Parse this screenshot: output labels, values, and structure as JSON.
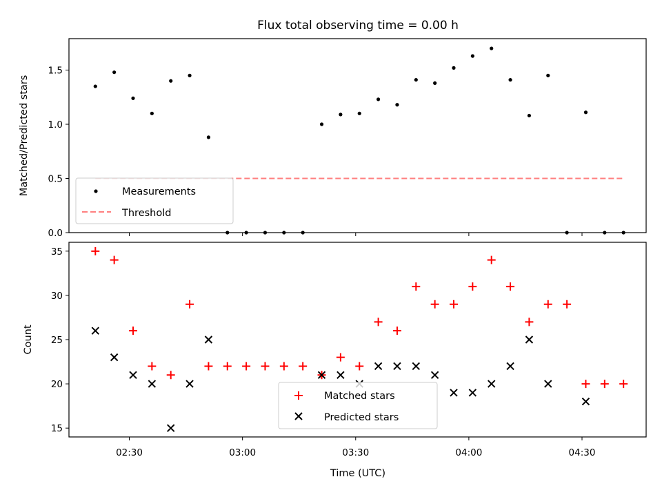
{
  "title": "Flux total observing time = 0.00 h",
  "colors": {
    "measurements": "#000000",
    "threshold": "#ff7f7f",
    "matched": "#ff0000",
    "predicted": "#000000"
  },
  "x_axis": {
    "label": "Time (UTC)",
    "range": [
      "02:14",
      "04:47"
    ],
    "ticks": [
      "02:30",
      "03:00",
      "03:30",
      "04:00",
      "04:30"
    ]
  },
  "chart_data": [
    {
      "type": "scatter",
      "panel": "top",
      "ylabel": "Matched/Predicted stars",
      "ylim": [
        0,
        1.79
      ],
      "yticks": [
        "0.0",
        "0.5",
        "1.0",
        "1.5"
      ],
      "legend_position": "lower-left",
      "series": [
        {
          "name": "Measurements",
          "marker": "dot",
          "x": [
            "02:21",
            "02:26",
            "02:31",
            "02:36",
            "02:41",
            "02:46",
            "02:51",
            "02:56",
            "03:01",
            "03:06",
            "03:11",
            "03:16",
            "03:21",
            "03:26",
            "03:31",
            "03:36",
            "03:41",
            "03:46",
            "03:51",
            "03:56",
            "04:01",
            "04:06",
            "04:11",
            "04:16",
            "04:21",
            "04:26",
            "04:31",
            "04:36",
            "04:41"
          ],
          "y": [
            1.35,
            1.48,
            1.24,
            1.1,
            1.4,
            1.45,
            0.88,
            0.0,
            0.0,
            0.0,
            0.0,
            0.0,
            1.0,
            1.09,
            1.1,
            1.23,
            1.18,
            1.41,
            1.38,
            1.52,
            1.63,
            1.7,
            1.41,
            1.08,
            1.45,
            0.0,
            1.11,
            0.0,
            0.0
          ]
        },
        {
          "name": "Threshold",
          "style": "dashed-line",
          "x": [
            "02:21",
            "04:41"
          ],
          "y": [
            0.5,
            0.5
          ]
        }
      ]
    },
    {
      "type": "scatter",
      "panel": "bottom",
      "ylabel": "Count",
      "ylim": [
        14,
        36
      ],
      "yticks": [
        "15",
        "20",
        "25",
        "30",
        "35"
      ],
      "legend_position": "lower-center",
      "series": [
        {
          "name": "Matched stars",
          "marker": "plus",
          "x": [
            "02:21",
            "02:26",
            "02:31",
            "02:36",
            "02:41",
            "02:46",
            "02:51",
            "02:56",
            "03:01",
            "03:06",
            "03:11",
            "03:16",
            "03:21",
            "03:26",
            "03:31",
            "03:36",
            "03:41",
            "03:46",
            "03:51",
            "03:56",
            "04:01",
            "04:06",
            "04:11",
            "04:16",
            "04:21",
            "04:26",
            "04:31",
            "04:36",
            "04:41"
          ],
          "y": [
            35,
            34,
            26,
            22,
            21,
            29,
            22,
            22,
            22,
            22,
            22,
            22,
            21,
            23,
            22,
            27,
            26,
            31,
            29,
            29,
            31,
            34,
            31,
            27,
            29,
            29,
            20,
            20,
            20
          ]
        },
        {
          "name": "Predicted stars",
          "marker": "x",
          "x": [
            "02:21",
            "02:26",
            "02:31",
            "02:36",
            "02:41",
            "02:46",
            "02:51",
            "03:21",
            "03:26",
            "03:31",
            "03:36",
            "03:41",
            "03:46",
            "03:51",
            "03:56",
            "04:01",
            "04:06",
            "04:11",
            "04:16",
            "04:21",
            "04:31"
          ],
          "y": [
            26,
            23,
            21,
            20,
            15,
            20,
            25,
            21,
            21,
            20,
            22,
            22,
            22,
            21,
            19,
            19,
            20,
            22,
            25,
            20,
            18
          ]
        }
      ]
    }
  ]
}
